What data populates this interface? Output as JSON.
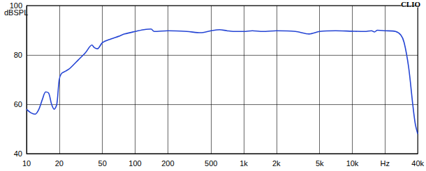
{
  "chart_data": {
    "type": "line",
    "title": "CLIO",
    "y_label": "dBSPL",
    "log": "x",
    "grid": true,
    "xlim": [
      10,
      40000
    ],
    "ylim": [
      40,
      100
    ],
    "xticks": [
      10,
      20,
      50,
      100,
      200,
      500,
      {
        "value": 1000,
        "label": "1k"
      },
      {
        "value": 2000,
        "label": "2k"
      },
      {
        "value": 5000,
        "label": "5k"
      },
      {
        "value": 10000,
        "label": "10k"
      },
      {
        "value": 20000,
        "label": "Hz"
      },
      {
        "value": 40000,
        "label": "40k"
      }
    ],
    "yticks": [
      40,
      60,
      80,
      100
    ],
    "series": [
      {
        "color": "#2444d4",
        "x": [
          10,
          11,
          12,
          13,
          14,
          15,
          16,
          17,
          18,
          19,
          20,
          21,
          23,
          25,
          30,
          35,
          40,
          42,
          45,
          50,
          60,
          70,
          80,
          100,
          120,
          140,
          150,
          200,
          300,
          400,
          500,
          600,
          700,
          800,
          1000,
          1200,
          1500,
          2000,
          3000,
          4000,
          5000,
          7000,
          10000,
          13000,
          15000,
          16000,
          17000,
          20000,
          25000,
          28000,
          30000,
          33000,
          36000,
          38000,
          40000
        ],
        "values": [
          58,
          56.5,
          56,
          58,
          62,
          65,
          64.5,
          60,
          58,
          60,
          70,
          72.5,
          73.5,
          74.5,
          78,
          81,
          84,
          83,
          82.5,
          85,
          86.5,
          87.5,
          88.5,
          89.5,
          90.2,
          90.5,
          89.5,
          89.8,
          89.5,
          89,
          89.8,
          90.2,
          89.8,
          89.5,
          89.5,
          89.8,
          89.5,
          89.8,
          89.5,
          88.5,
          89.5,
          89.8,
          89.6,
          89.5,
          89.8,
          89.3,
          90,
          89.8,
          89.5,
          88,
          85,
          75,
          60,
          52,
          48
        ]
      }
    ]
  }
}
